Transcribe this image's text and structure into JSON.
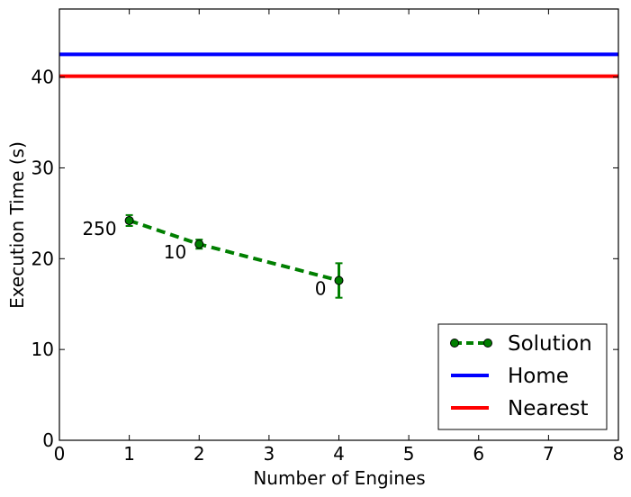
{
  "chart_data": {
    "type": "line",
    "xlabel": "Number of Engines",
    "ylabel": "Execution Time (s)",
    "xlim": [
      0,
      8
    ],
    "ylim": [
      0,
      47.5
    ],
    "xticks": [
      "0",
      "1",
      "2",
      "3",
      "4",
      "5",
      "6",
      "7",
      "8"
    ],
    "yticks": [
      "0",
      "10",
      "20",
      "30",
      "40"
    ],
    "grid": false,
    "legend_position": "lower-right",
    "series": [
      {
        "name": "Solution",
        "style": "dashed line with circle markers and error bars",
        "color": "#007f00",
        "x": [
          1,
          2,
          4
        ],
        "y": [
          24.2,
          21.6,
          17.6
        ],
        "yerr": [
          0.6,
          0.5,
          1.9
        ],
        "point_labels": [
          "250",
          "10",
          "0"
        ]
      },
      {
        "name": "Home",
        "style": "horizontal line",
        "color": "#0000ff",
        "y": 42.5
      },
      {
        "name": "Nearest",
        "style": "horizontal line",
        "color": "#ff0000",
        "y": 40.1
      }
    ]
  }
}
